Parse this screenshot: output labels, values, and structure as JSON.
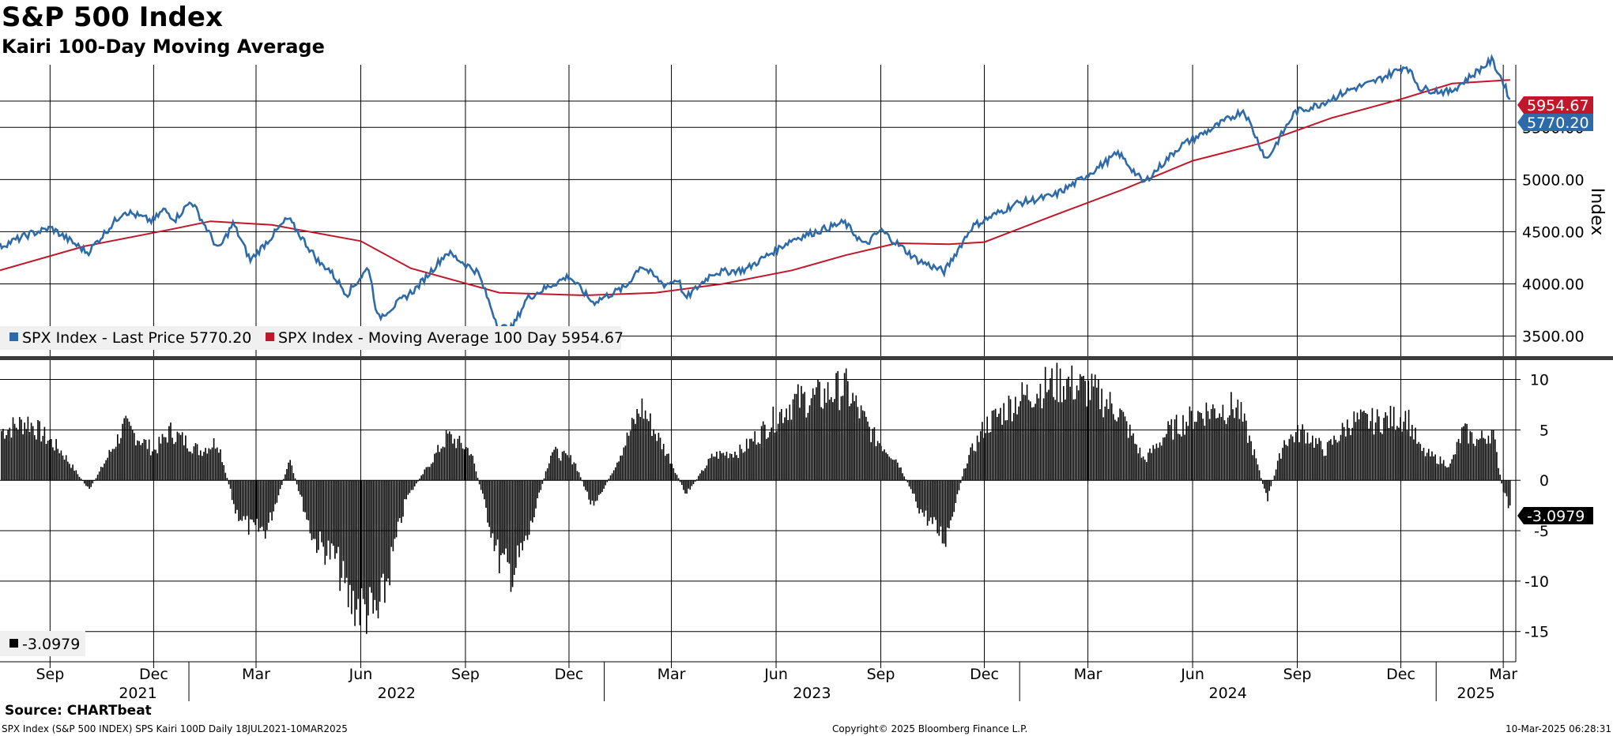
{
  "header": {
    "title": "S&P 500 Index",
    "subtitle": "Kairi 100-Day Moving Average"
  },
  "footer": {
    "source": "Source: CHARTbeat",
    "info": "SPX Index (S&P 500 INDEX) SPS Kairi 100D  Daily 18JUL2021-10MAR2025",
    "copyright": "Copyright© 2025 Bloomberg Finance L.P.",
    "timestamp": "10-Mar-2025 06:28:31"
  },
  "colors": {
    "price": "#2e6aa8",
    "moving_average": "#c0182a",
    "kairi": "#000000",
    "grid": "#000000"
  },
  "chart_data": [
    {
      "type": "line",
      "panel": "upper",
      "ylabel": "Index",
      "ylim": [
        3300,
        6100
      ],
      "yticks": [
        "3500.00",
        "4000.00",
        "4500.00",
        "5000.00",
        "5500.00"
      ],
      "x_month_labels": [
        "Sep",
        "Dec",
        "Mar",
        "Jun",
        "Sep",
        "Dec",
        "Mar",
        "Jun",
        "Sep",
        "Dec",
        "Mar",
        "Jun",
        "Sep",
        "Dec",
        "Mar"
      ],
      "x_year_labels": [
        "2021",
        "2022",
        "2023",
        "2024",
        "2025"
      ],
      "grid": true,
      "legend_position": "bottom-left",
      "last_value_labels": {
        "ma": "5954.67",
        "price": "5770.20"
      },
      "series": [
        {
          "name": "SPX Index - Last Price",
          "legend_value": "5770.20",
          "x": [
            "2021-07-19",
            "2021-08-15",
            "2021-09-02",
            "2021-10-04",
            "2021-11-05",
            "2021-11-30",
            "2021-12-10",
            "2021-12-20",
            "2022-01-03",
            "2022-01-27",
            "2022-02-09",
            "2022-02-24",
            "2022-03-29",
            "2022-04-27",
            "2022-05-03",
            "2022-05-20",
            "2022-06-08",
            "2022-06-16",
            "2022-07-20",
            "2022-08-16",
            "2022-09-12",
            "2022-09-30",
            "2022-10-12",
            "2022-10-25",
            "2022-11-10",
            "2022-12-01",
            "2022-12-22",
            "2023-01-20",
            "2023-02-02",
            "2023-02-23",
            "2023-03-07",
            "2023-03-13",
            "2023-04-06",
            "2023-05-05",
            "2023-06-15",
            "2023-07-31",
            "2023-08-18",
            "2023-09-01",
            "2023-10-03",
            "2023-10-27",
            "2023-11-20",
            "2023-12-29",
            "2024-01-31",
            "2024-02-21",
            "2024-03-28",
            "2024-04-19",
            "2024-05-21",
            "2024-06-18",
            "2024-07-16",
            "2024-08-05",
            "2024-08-30",
            "2024-09-19",
            "2024-10-18",
            "2024-11-06",
            "2024-12-06",
            "2024-12-18",
            "2025-01-13",
            "2025-02-19",
            "2025-02-28",
            "2025-03-07"
          ],
          "y": [
            4360,
            4480,
            4536,
            4300,
            4700,
            4600,
            4712,
            4620,
            4796,
            4326,
            4580,
            4225,
            4630,
            4183,
            4155,
            3901,
            4160,
            3667,
            3960,
            4305,
            4110,
            3585,
            3577,
            3860,
            3957,
            4076,
            3822,
            3972,
            4180,
            3990,
            4048,
            3855,
            4105,
            4136,
            4425,
            4589,
            4369,
            4515,
            4229,
            4117,
            4547,
            4770,
            4845,
            4981,
            5254,
            4967,
            5321,
            5487,
            5667,
            5186,
            5648,
            5713,
            5864,
            5929,
            6090,
            5872,
            5836,
            6144,
            5955,
            5770
          ]
        },
        {
          "name": "SPX Index - Moving Average 100 Day",
          "legend_value": "5954.67",
          "x": [
            "2021-07-19",
            "2021-10-01",
            "2021-12-15",
            "2022-01-20",
            "2022-03-15",
            "2022-06-01",
            "2022-07-15",
            "2022-10-01",
            "2022-12-15",
            "2023-02-15",
            "2023-04-15",
            "2023-06-15",
            "2023-08-01",
            "2023-09-15",
            "2023-10-31",
            "2023-12-01",
            "2024-02-01",
            "2024-04-01",
            "2024-06-01",
            "2024-08-01",
            "2024-10-01",
            "2024-12-01",
            "2025-01-15",
            "2025-03-07"
          ],
          "y": [
            4130,
            4360,
            4520,
            4600,
            4565,
            4410,
            4150,
            3915,
            3890,
            3915,
            4000,
            4130,
            4275,
            4390,
            4380,
            4400,
            4660,
            4905,
            5180,
            5350,
            5590,
            5770,
            5920,
            5954.67
          ]
        }
      ]
    },
    {
      "type": "bar",
      "panel": "lower",
      "ylim": [
        -18,
        12
      ],
      "yticks": [
        "-15",
        "-10",
        "-5",
        "0",
        "5",
        "10"
      ],
      "grid": true,
      "legend_position": "bottom-left",
      "last_value_label": "-3.0979",
      "series": [
        {
          "name": "",
          "legend_value": "-3.0979",
          "x": [
            "2021-07-19",
            "2021-08-12",
            "2021-09-10",
            "2021-10-05",
            "2021-11-05",
            "2021-12-01",
            "2021-12-15",
            "2022-01-10",
            "2022-01-26",
            "2022-02-10",
            "2022-02-24",
            "2022-03-10",
            "2022-03-30",
            "2022-04-20",
            "2022-05-10",
            "2022-05-20",
            "2022-06-16",
            "2022-07-10",
            "2022-08-16",
            "2022-09-05",
            "2022-09-30",
            "2022-10-12",
            "2022-10-25",
            "2022-11-15",
            "2022-12-05",
            "2022-12-22",
            "2023-01-10",
            "2023-02-02",
            "2023-02-28",
            "2023-03-13",
            "2023-04-06",
            "2023-05-01",
            "2023-06-15",
            "2023-07-10",
            "2023-07-31",
            "2023-08-25",
            "2023-09-15",
            "2023-10-05",
            "2023-10-27",
            "2023-11-15",
            "2023-12-01",
            "2023-12-27",
            "2024-01-20",
            "2024-02-10",
            "2024-03-05",
            "2024-03-28",
            "2024-04-19",
            "2024-05-10",
            "2024-06-10",
            "2024-07-10",
            "2024-07-24",
            "2024-08-05",
            "2024-08-20",
            "2024-09-06",
            "2024-09-25",
            "2024-10-18",
            "2024-11-08",
            "2024-12-06",
            "2024-12-18",
            "2025-01-13",
            "2025-01-24",
            "2025-02-06",
            "2025-02-19",
            "2025-02-28",
            "2025-03-07"
          ],
          "y": [
            5,
            6,
            3,
            -1,
            5.5,
            3,
            5,
            3,
            4,
            -3,
            -5,
            -5,
            2,
            -6,
            -8,
            -12,
            -14,
            -2,
            4.5,
            3,
            -8,
            -9.5,
            -6,
            3,
            2,
            -3,
            1.5,
            7.5,
            2,
            -1.5,
            2.5,
            3,
            8,
            8.5,
            9.5,
            4.5,
            2,
            -3,
            -6,
            2,
            5.5,
            8,
            9.5,
            10,
            9,
            7,
            2,
            5,
            7,
            7.5,
            3,
            -2,
            4,
            5,
            3,
            6,
            6,
            6.5,
            3,
            1.5,
            5,
            4,
            5,
            -1,
            -3.0979
          ]
        }
      ]
    }
  ],
  "legends": {
    "upper": [
      {
        "label": "SPX Index - Last Price",
        "value": "5770.20"
      },
      {
        "label": "SPX Index - Moving Average 100 Day",
        "value": "5954.67"
      }
    ],
    "lower": [
      {
        "label": "",
        "value": "-3.0979"
      }
    ]
  }
}
